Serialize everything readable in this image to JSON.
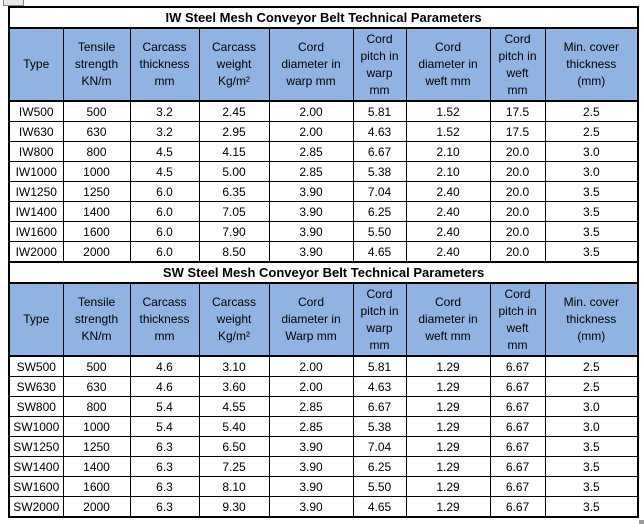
{
  "colors": {
    "header_fill": "#8FB4E1",
    "border": "#000000",
    "background": "#FFFFFF",
    "text": "#000000"
  },
  "tables": [
    {
      "title": "IW Steel Mesh Conveyor Belt Technical Parameters",
      "headers": [
        "Type",
        "Tensile\nstrength\nKN/m",
        "Carcass\nthickness\nmm",
        "Carcass\nweight\nKg/m²",
        "Cord\ndiameter in\nwarp mm",
        "Cord\npitch in\nwarp\nmm",
        "Cord\ndiameter in\nweft mm",
        "Cord\npitch in\nweft\nmm",
        "Min. cover\nthickness\n(mm)"
      ],
      "rows": [
        [
          "IW500",
          "500",
          "3.2",
          "2.45",
          "2.00",
          "5.81",
          "1.52",
          "17.5",
          "2.5"
        ],
        [
          "IW630",
          "630",
          "3.2",
          "2.95",
          "2.00",
          "4.63",
          "1.52",
          "17.5",
          "2.5"
        ],
        [
          "IW800",
          "800",
          "4.5",
          "4.15",
          "2.85",
          "6.67",
          "2.10",
          "20.0",
          "3.0"
        ],
        [
          "IW1000",
          "1000",
          "4.5",
          "5.00",
          "2.85",
          "5.38",
          "2.10",
          "20.0",
          "3.0"
        ],
        [
          "IW1250",
          "1250",
          "6.0",
          "6.35",
          "3.90",
          "7.04",
          "2.40",
          "20.0",
          "3.5"
        ],
        [
          "IW1400",
          "1400",
          "6.0",
          "7.05",
          "3.90",
          "6.25",
          "2.40",
          "20.0",
          "3.5"
        ],
        [
          "IW1600",
          "1600",
          "6.0",
          "7.90",
          "3.90",
          "5.50",
          "2.40",
          "20.0",
          "3.5"
        ],
        [
          "IW2000",
          "2000",
          "6.0",
          "8.50",
          "3.90",
          "4.65",
          "2.40",
          "20.0",
          "3.5"
        ]
      ]
    },
    {
      "title": "SW Steel Mesh Conveyor Belt Technical Parameters",
      "headers": [
        "Type",
        "Tensile\nstrength\nKN/m",
        "Carcass\nthickness\nmm",
        "Carcass\nweight\nKg/m²",
        "Cord\ndiameter in\nWarp mm",
        "Cord\npitch in\nwarp\nmm",
        "Cord\ndiameter in\nweft mm",
        "Cord\npitch in\nweft\nmm",
        "Min. cover\nthickness\n(mm)"
      ],
      "rows": [
        [
          "SW500",
          "500",
          "4.6",
          "3.10",
          "2.00",
          "5.81",
          "1.29",
          "6.67",
          "2.5"
        ],
        [
          "SW630",
          "630",
          "4.6",
          "3.60",
          "2.00",
          "4.63",
          "1.29",
          "6.67",
          "2.5"
        ],
        [
          "SW800",
          "800",
          "5.4",
          "4.55",
          "2.85",
          "6.67",
          "1.29",
          "6.67",
          "3.0"
        ],
        [
          "SW1000",
          "1000",
          "5.4",
          "5.40",
          "2.85",
          "5.38",
          "1.29",
          "6.67",
          "3.0"
        ],
        [
          "SW1250",
          "1250",
          "6.3",
          "6.50",
          "3.90",
          "7.04",
          "1.29",
          "6.67",
          "3.5"
        ],
        [
          "SW1400",
          "1400",
          "6.3",
          "7.25",
          "3.90",
          "6.25",
          "1.29",
          "6.67",
          "3.5"
        ],
        [
          "SW1600",
          "1600",
          "6.3",
          "8.10",
          "3.90",
          "5.50",
          "1.29",
          "6.67",
          "3.5"
        ],
        [
          "SW2000",
          "2000",
          "6.3",
          "9.30",
          "3.90",
          "4.65",
          "1.29",
          "6.67",
          "3.5"
        ]
      ]
    }
  ]
}
